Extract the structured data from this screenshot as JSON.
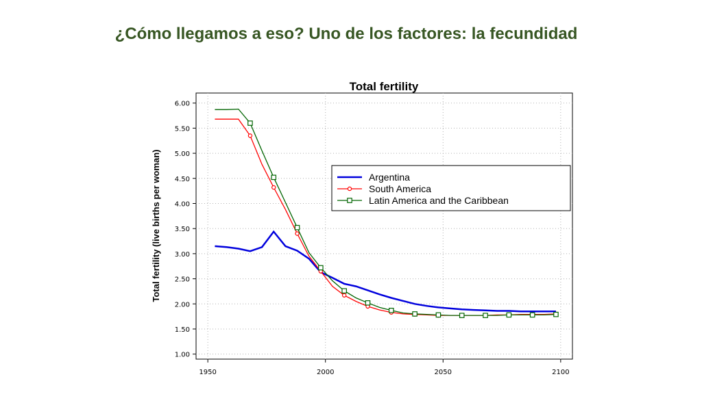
{
  "slide": {
    "title": "¿Cómo llegamos a eso? Uno de los factores: la fecundidad"
  },
  "chart_data": {
    "type": "line",
    "title": "Total fertility",
    "xlabel": "",
    "ylabel": "Total fertility (live births per woman)",
    "xlim": [
      1945,
      2105
    ],
    "ylim": [
      0.9,
      6.2
    ],
    "xticks": [
      1950,
      2000,
      2050,
      2100
    ],
    "xtick_labels": [
      "1950",
      "2000",
      "2050",
      "2100"
    ],
    "yticks": [
      1.0,
      1.5,
      2.0,
      2.5,
      3.0,
      3.5,
      4.0,
      4.5,
      5.0,
      5.5,
      6.0
    ],
    "ytick_labels": [
      "1.00",
      "1.50",
      "2.00",
      "2.50",
      "3.00",
      "3.50",
      "4.00",
      "4.50",
      "5.00",
      "5.50",
      "6.00"
    ],
    "grid": true,
    "legend_position": "center-right",
    "series": [
      {
        "name": "Argentina",
        "color": "#0000dd",
        "marker": "none",
        "points": [
          [
            1953,
            3.15
          ],
          [
            1958,
            3.13
          ],
          [
            1963,
            3.1
          ],
          [
            1968,
            3.05
          ],
          [
            1973,
            3.13
          ],
          [
            1978,
            3.44
          ],
          [
            1983,
            3.15
          ],
          [
            1988,
            3.06
          ],
          [
            1993,
            2.9
          ],
          [
            1998,
            2.63
          ],
          [
            2003,
            2.52
          ],
          [
            2008,
            2.4
          ],
          [
            2013,
            2.35
          ],
          [
            2018,
            2.27
          ],
          [
            2023,
            2.19
          ],
          [
            2028,
            2.12
          ],
          [
            2033,
            2.06
          ],
          [
            2038,
            2.0
          ],
          [
            2043,
            1.96
          ],
          [
            2048,
            1.93
          ],
          [
            2053,
            1.91
          ],
          [
            2058,
            1.89
          ],
          [
            2063,
            1.88
          ],
          [
            2068,
            1.87
          ],
          [
            2073,
            1.86
          ],
          [
            2078,
            1.86
          ],
          [
            2083,
            1.85
          ],
          [
            2088,
            1.85
          ],
          [
            2093,
            1.85
          ],
          [
            2098,
            1.85
          ]
        ]
      },
      {
        "name": "South America",
        "color": "#ff0000",
        "marker": "circle",
        "points": [
          [
            1953,
            5.68
          ],
          [
            1958,
            5.68
          ],
          [
            1963,
            5.68
          ],
          [
            1968,
            5.35
          ],
          [
            1973,
            4.78
          ],
          [
            1978,
            4.32
          ],
          [
            1983,
            3.88
          ],
          [
            1988,
            3.4
          ],
          [
            1993,
            2.95
          ],
          [
            1998,
            2.65
          ],
          [
            2003,
            2.35
          ],
          [
            2008,
            2.17
          ],
          [
            2013,
            2.05
          ],
          [
            2018,
            1.95
          ],
          [
            2023,
            1.88
          ],
          [
            2028,
            1.83
          ],
          [
            2033,
            1.8
          ],
          [
            2038,
            1.79
          ],
          [
            2043,
            1.78
          ],
          [
            2048,
            1.77
          ],
          [
            2053,
            1.77
          ],
          [
            2058,
            1.77
          ],
          [
            2063,
            1.77
          ],
          [
            2068,
            1.77
          ],
          [
            2073,
            1.78
          ],
          [
            2078,
            1.78
          ],
          [
            2083,
            1.79
          ],
          [
            2088,
            1.79
          ],
          [
            2093,
            1.79
          ],
          [
            2098,
            1.8
          ]
        ]
      },
      {
        "name": "Latin America and the Caribbean",
        "color": "#006400",
        "marker": "square",
        "points": [
          [
            1953,
            5.87
          ],
          [
            1958,
            5.87
          ],
          [
            1963,
            5.88
          ],
          [
            1968,
            5.6
          ],
          [
            1973,
            5.05
          ],
          [
            1978,
            4.52
          ],
          [
            1983,
            4.02
          ],
          [
            1988,
            3.52
          ],
          [
            1993,
            3.02
          ],
          [
            1998,
            2.72
          ],
          [
            2003,
            2.46
          ],
          [
            2008,
            2.26
          ],
          [
            2013,
            2.12
          ],
          [
            2018,
            2.02
          ],
          [
            2023,
            1.93
          ],
          [
            2028,
            1.87
          ],
          [
            2033,
            1.82
          ],
          [
            2038,
            1.8
          ],
          [
            2043,
            1.79
          ],
          [
            2048,
            1.78
          ],
          [
            2053,
            1.77
          ],
          [
            2058,
            1.77
          ],
          [
            2063,
            1.77
          ],
          [
            2068,
            1.77
          ],
          [
            2073,
            1.77
          ],
          [
            2078,
            1.78
          ],
          [
            2083,
            1.78
          ],
          [
            2088,
            1.78
          ],
          [
            2093,
            1.78
          ],
          [
            2098,
            1.79
          ]
        ]
      }
    ]
  }
}
